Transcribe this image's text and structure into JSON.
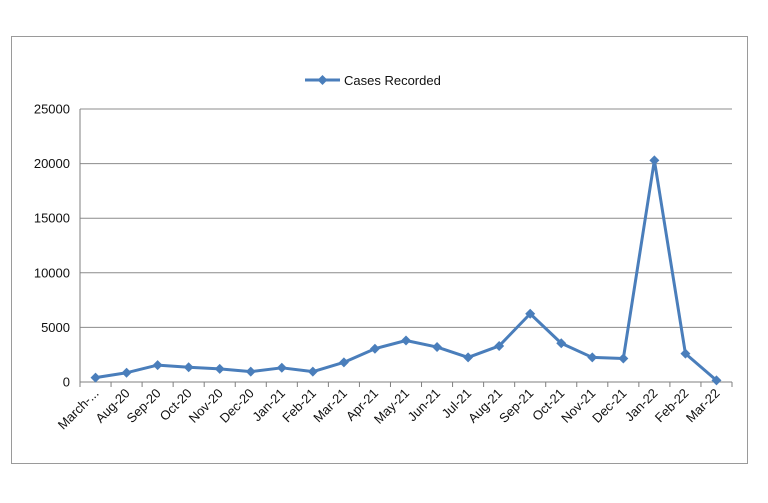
{
  "chart_data": {
    "type": "line",
    "legend": {
      "position": "top",
      "label": "Cases Recorded"
    },
    "categories": [
      "March-...",
      "Aug-20",
      "Sep-20",
      "Oct-20",
      "Nov-20",
      "Dec-20",
      "Jan-21",
      "Feb-21",
      "Mar-21",
      "Apr-21",
      "May-21",
      "Jun-21",
      "Jul-21",
      "Aug-21",
      "Sep-21",
      "Oct-21",
      "Nov-21",
      "Dec-21",
      "Jan-22",
      "Feb-22",
      "Mar-22"
    ],
    "series": [
      {
        "name": "Cases Recorded",
        "color": "#4a7ebb",
        "values": [
          400,
          850,
          1550,
          1350,
          1200,
          950,
          1300,
          950,
          1800,
          3050,
          3800,
          3200,
          2250,
          3300,
          6250,
          3550,
          2250,
          2150,
          20300,
          2600,
          150
        ]
      }
    ],
    "ylim": [
      0,
      25000
    ],
    "yticks": [
      "0",
      "5000",
      "10000",
      "15000",
      "20000",
      "25000"
    ],
    "grid": true
  }
}
